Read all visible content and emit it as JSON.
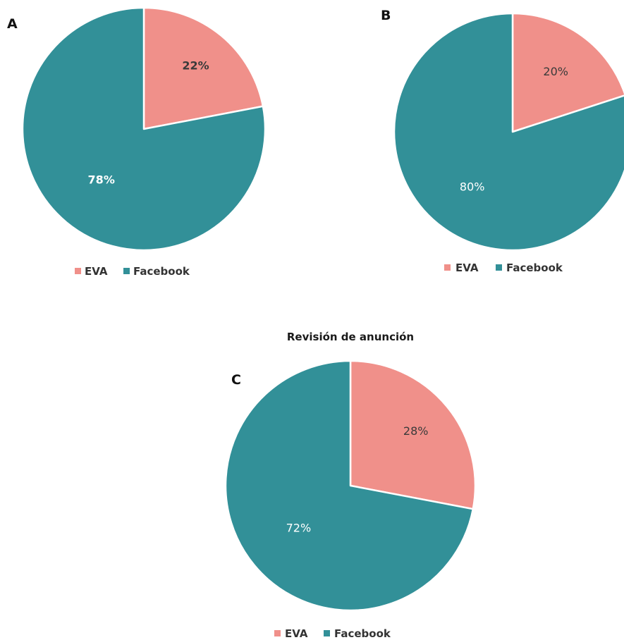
{
  "chart_data": [
    {
      "type": "pie",
      "panel_label": "A",
      "title": "",
      "slices": [
        {
          "label": "EVA",
          "value": 22,
          "display": "22%",
          "color": "#f0908a"
        },
        {
          "label": "Facebook",
          "value": 78,
          "display": "78%",
          "color": "#329098"
        }
      ],
      "legend": [
        "EVA",
        "Facebook"
      ],
      "legend_position": "bottom"
    },
    {
      "type": "pie",
      "panel_label": "B",
      "title": "",
      "slices": [
        {
          "label": "EVA",
          "value": 20,
          "display": "20%",
          "color": "#f0908a"
        },
        {
          "label": "Facebook",
          "value": 80,
          "display": "80%",
          "color": "#329098"
        }
      ],
      "legend": [
        "EVA",
        "Facebook"
      ],
      "legend_position": "bottom"
    },
    {
      "type": "pie",
      "panel_label": "C",
      "title": "Revisión de anunción",
      "slices": [
        {
          "label": "EVA",
          "value": 28,
          "display": "28%",
          "color": "#f0908a"
        },
        {
          "label": "Facebook",
          "value": 72,
          "display": "72%",
          "color": "#329098"
        }
      ],
      "legend": [
        "EVA",
        "Facebook"
      ],
      "legend_position": "bottom"
    }
  ]
}
